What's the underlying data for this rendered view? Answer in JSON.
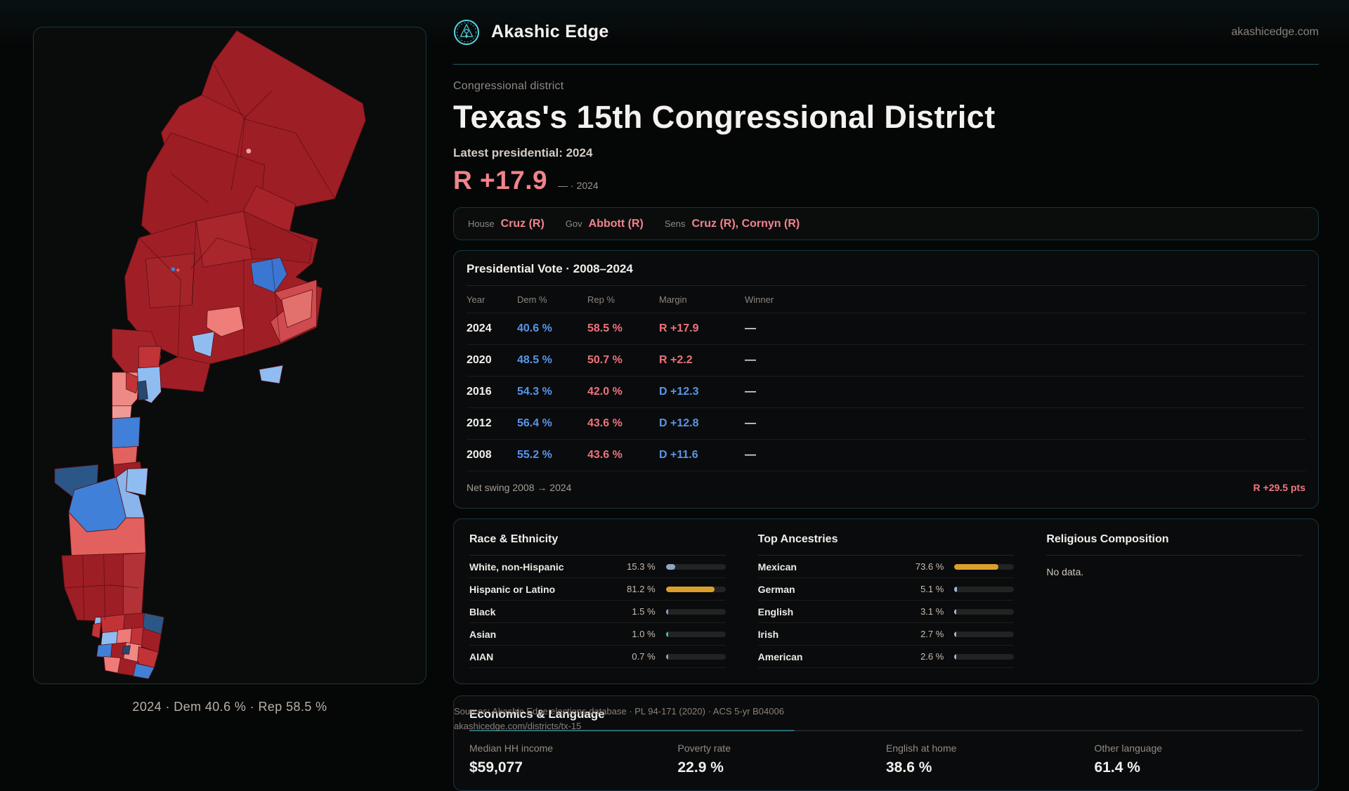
{
  "brand": {
    "name": "Akashic Edge",
    "site": "akashicedge.com"
  },
  "page": {
    "kicker": "Congressional district",
    "title": "Texas's 15th Congressional District",
    "latest_label": "Latest presidential: 2024",
    "margin_value": "R +17.9",
    "margin_note": "— · 2024"
  },
  "officials": [
    {
      "label": "House",
      "value": "Cruz (R)"
    },
    {
      "label": "Gov",
      "value": "Abbott (R)"
    },
    {
      "label": "Sens",
      "value": "Cruz (R), Cornyn (R)"
    }
  ],
  "map": {
    "caption": "2024 · Dem 40.6 % · Rep 58.5 %",
    "palette": {
      "rep_dark": "#9e1e25",
      "rep_mid": "#c23338",
      "rep_light": "#ee7b78",
      "rep_pale": "#f09a97",
      "dem_dark": "#2b5788",
      "dem_mid": "#4080d8",
      "dem_light": "#90bdf1",
      "dem_navy": "#244973"
    }
  },
  "presidential": {
    "title": "Presidential Vote · 2008–2024",
    "columns": [
      "Year",
      "Dem %",
      "Rep %",
      "Margin",
      "Winner"
    ],
    "rows": [
      {
        "year": "2024",
        "dem": "40.6 %",
        "rep": "58.5 %",
        "margin": "R +17.9",
        "margin_party": "R",
        "winner": "—"
      },
      {
        "year": "2020",
        "dem": "48.5 %",
        "rep": "50.7 %",
        "margin": "R +2.2",
        "margin_party": "R",
        "winner": "—"
      },
      {
        "year": "2016",
        "dem": "54.3 %",
        "rep": "42.0 %",
        "margin": "D +12.3",
        "margin_party": "D",
        "winner": "—"
      },
      {
        "year": "2012",
        "dem": "56.4 %",
        "rep": "43.6 %",
        "margin": "D +12.8",
        "margin_party": "D",
        "winner": "—"
      },
      {
        "year": "2008",
        "dem": "55.2 %",
        "rep": "43.6 %",
        "margin": "D +11.6",
        "margin_party": "D",
        "winner": "—"
      }
    ],
    "net_swing_label": "Net swing 2008 → 2024",
    "net_swing_value": "R +29.5 pts"
  },
  "demographics": {
    "race": {
      "title": "Race & Ethnicity",
      "rows": [
        {
          "label": "White, non-Hispanic",
          "value": "15.3 %",
          "pct": 15.3,
          "color": "#8ea6c4"
        },
        {
          "label": "Hispanic or Latino",
          "value": "81.2 %",
          "pct": 81.2,
          "color": "#dba02b"
        },
        {
          "label": "Black",
          "value": "1.5 %",
          "pct": 1.5,
          "color": "#a88fd8"
        },
        {
          "label": "Asian",
          "value": "1.0 %",
          "pct": 1.0,
          "color": "#3fbf9f"
        },
        {
          "label": "AIAN",
          "value": "0.7 %",
          "pct": 0.7,
          "color": "#9aa0a6"
        }
      ]
    },
    "ancestries": {
      "title": "Top Ancestries",
      "rows": [
        {
          "label": "Mexican",
          "value": "73.6 %",
          "pct": 73.6,
          "color": "#dba02b"
        },
        {
          "label": "German",
          "value": "5.1 %",
          "pct": 5.1,
          "color": "#9fb6d9"
        },
        {
          "label": "English",
          "value": "3.1 %",
          "pct": 3.1,
          "color": "#9fb6d9"
        },
        {
          "label": "Irish",
          "value": "2.7 %",
          "pct": 2.7,
          "color": "#9fb6d9"
        },
        {
          "label": "American",
          "value": "2.6 %",
          "pct": 2.6,
          "color": "#9fb6d9"
        }
      ]
    },
    "religion": {
      "title": "Religious Composition",
      "empty": "No data."
    }
  },
  "economics": {
    "title": "Economics & Language",
    "stats": [
      {
        "label": "Median HH income",
        "value": "$59,077"
      },
      {
        "label": "Poverty rate",
        "value": "22.9 %"
      },
      {
        "label": "English at home",
        "value": "38.6 %"
      },
      {
        "label": "Other language",
        "value": "61.4 %"
      }
    ]
  },
  "footer": {
    "sources_line1": "Sources: Akashic Edge elections database · PL 94-171 (2020) · ACS 5-yr B04006",
    "sources_line2": "akashicedge.com/districts/tx-15"
  },
  "colors": {
    "dem": "#5896ea",
    "rep": "#ee737b",
    "accent": "#55d6e3",
    "bar_orange": "#dba02b"
  }
}
